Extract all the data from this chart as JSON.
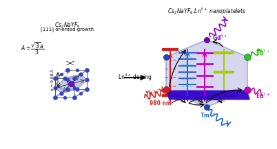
{
  "background_color": "#ffffff",
  "left": {
    "atom_color": "#3344cc",
    "center_atom_color": "#6622cc",
    "face_color": "#9999dd",
    "label_a": "a = 9.08 Å",
    "label_growth": "[111] oriented growth",
    "label_compound": "Cs$_2$NaYF$_6$"
  },
  "arrow_text": "Ln$^{3+}$ doping",
  "right": {
    "hex_face": "#ccccee",
    "hex_edge": "#9999bb",
    "top_bar": "#3300cc",
    "atom_blue": "#2244cc",
    "atom_red": "#cc2222",
    "atom_magenta": "#cc00bb",
    "atom_purple": "#7700bb",
    "atom_green": "#22cc22",
    "col_colors": [
      "#cc2222",
      "#3366cc",
      "#cc00bb",
      "#aacc00"
    ],
    "label_compound": "Cs$_2$NaYF$_6$:Ln$^{3+}$ nanoplatelets",
    "Tm_color": "#2266cc",
    "Eu_color": "#cc00aa",
    "Tb_color": "#22bb00",
    "Gd_color": "#8800cc",
    "Yb_color": "#cc2222",
    "nm980_color": "#cc2222"
  }
}
